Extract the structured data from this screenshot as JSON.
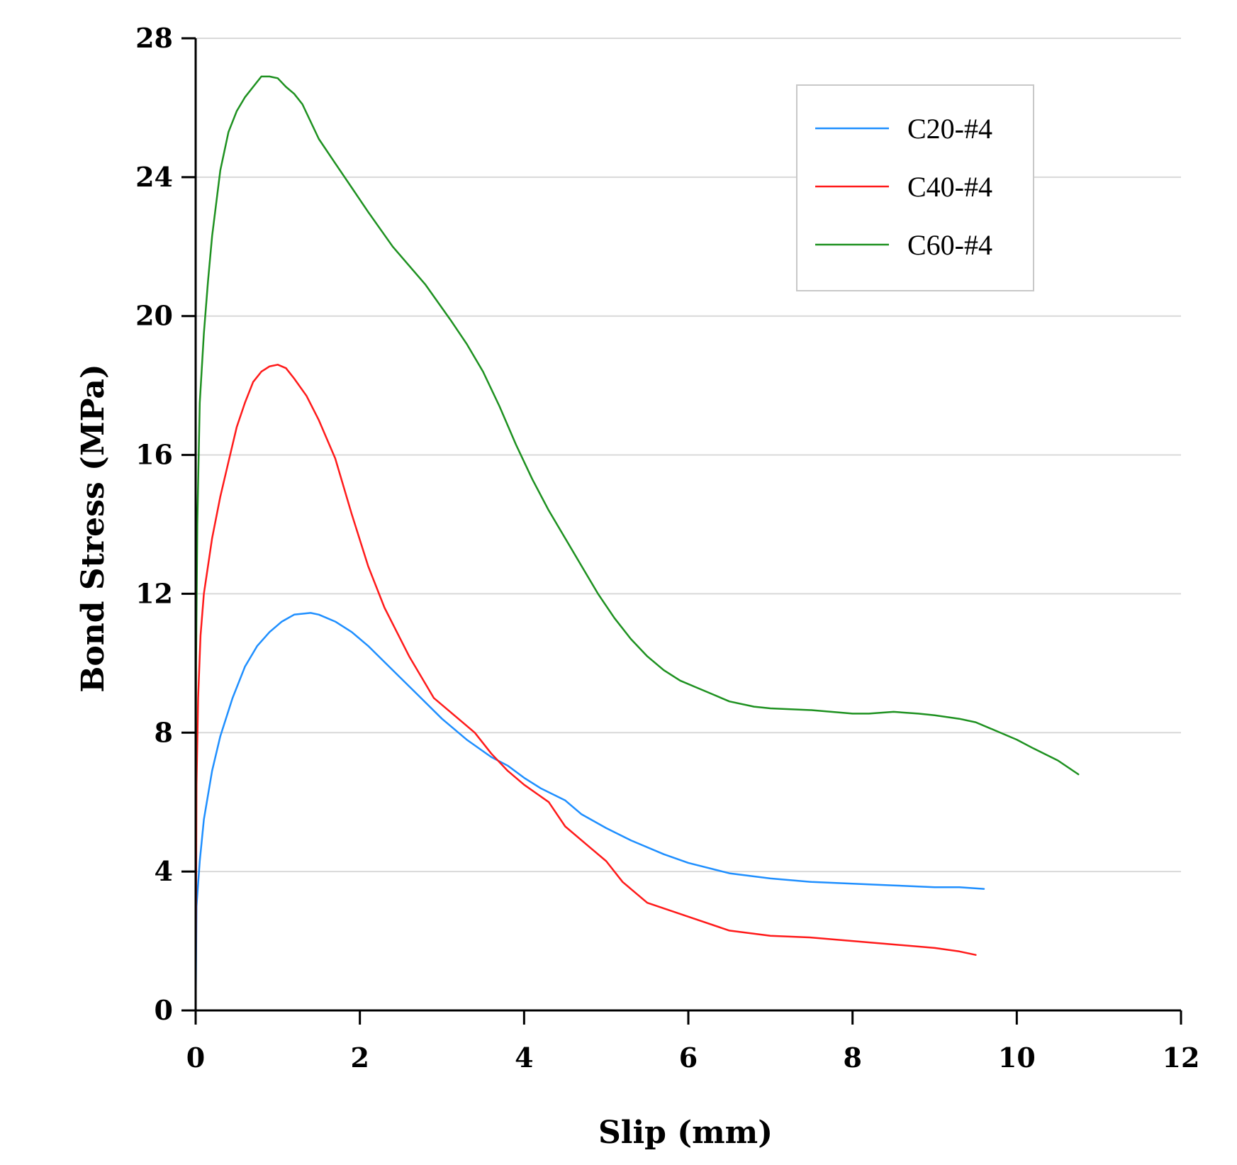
{
  "chart_data": {
    "type": "line",
    "title": "",
    "xlabel": "Slip (mm)",
    "ylabel": "Bond Stress (MPa)",
    "xlim": [
      0,
      12
    ],
    "ylim": [
      0,
      28
    ],
    "xticks": [
      0,
      2,
      4,
      6,
      8,
      10,
      12
    ],
    "yticks": [
      0,
      4,
      8,
      12,
      16,
      20,
      24,
      28
    ],
    "grid": "horizontal",
    "legend_position": "top-right",
    "series": [
      {
        "name": "C20-#4",
        "color": "#1f8fff",
        "x": [
          0,
          0.01,
          0.05,
          0.1,
          0.2,
          0.3,
          0.45,
          0.6,
          0.75,
          0.9,
          1.05,
          1.2,
          1.4,
          1.5,
          1.7,
          1.9,
          2.1,
          2.4,
          2.7,
          3.0,
          3.3,
          3.6,
          3.8,
          4.0,
          4.2,
          4.5,
          4.7,
          5.0,
          5.3,
          5.7,
          6.0,
          6.5,
          7.0,
          7.5,
          8.0,
          8.5,
          9.0,
          9.3,
          9.6
        ],
        "y": [
          0,
          3.0,
          4.3,
          5.5,
          6.9,
          7.9,
          9.0,
          9.9,
          10.5,
          10.9,
          11.2,
          11.4,
          11.45,
          11.4,
          11.2,
          10.9,
          10.5,
          9.8,
          9.1,
          8.4,
          7.8,
          7.3,
          7.05,
          6.7,
          6.4,
          6.05,
          5.65,
          5.25,
          4.9,
          4.5,
          4.25,
          3.95,
          3.8,
          3.7,
          3.65,
          3.6,
          3.55,
          3.55,
          3.5
        ]
      },
      {
        "name": "C40-#4",
        "color": "#ff1a1a",
        "x": [
          0,
          0.01,
          0.03,
          0.06,
          0.1,
          0.15,
          0.2,
          0.3,
          0.4,
          0.5,
          0.6,
          0.7,
          0.8,
          0.9,
          1.0,
          1.1,
          1.2,
          1.35,
          1.5,
          1.7,
          1.9,
          2.1,
          2.3,
          2.6,
          2.9,
          3.1,
          3.4,
          3.6,
          3.8,
          4.0,
          4.3,
          4.5,
          4.8,
          5.0,
          5.2,
          5.5,
          6.0,
          6.5,
          7.0,
          7.5,
          8.0,
          8.5,
          9.0,
          9.3,
          9.5
        ],
        "y": [
          0,
          6.5,
          9.0,
          10.8,
          12.0,
          12.8,
          13.6,
          14.8,
          15.8,
          16.8,
          17.5,
          18.1,
          18.4,
          18.55,
          18.6,
          18.5,
          18.2,
          17.7,
          17.0,
          15.9,
          14.3,
          12.8,
          11.6,
          10.2,
          9.0,
          8.6,
          8.0,
          7.4,
          6.9,
          6.5,
          6.0,
          5.3,
          4.7,
          4.3,
          3.7,
          3.1,
          2.7,
          2.3,
          2.15,
          2.1,
          2.0,
          1.9,
          1.8,
          1.7,
          1.6
        ]
      },
      {
        "name": "C60-#4",
        "color": "#1e9120",
        "x": [
          0,
          0.005,
          0.02,
          0.05,
          0.1,
          0.15,
          0.2,
          0.3,
          0.4,
          0.5,
          0.6,
          0.7,
          0.8,
          0.9,
          1.0,
          1.1,
          1.2,
          1.3,
          1.4,
          1.5,
          1.7,
          1.9,
          2.1,
          2.4,
          2.8,
          3.1,
          3.3,
          3.5,
          3.7,
          3.9,
          4.1,
          4.3,
          4.5,
          4.7,
          4.9,
          5.1,
          5.3,
          5.5,
          5.7,
          5.9,
          6.1,
          6.3,
          6.5,
          6.8,
          7.0,
          7.5,
          8.0,
          8.2,
          8.5,
          8.8,
          9.0,
          9.3,
          9.5,
          9.7,
          10.0,
          10.2,
          10.5,
          10.75
        ],
        "y": [
          0,
          10.0,
          14.0,
          17.5,
          19.5,
          21.0,
          22.3,
          24.2,
          25.3,
          25.9,
          26.3,
          26.6,
          26.9,
          26.9,
          26.85,
          26.6,
          26.4,
          26.1,
          25.6,
          25.1,
          24.4,
          23.7,
          23.0,
          22.0,
          20.9,
          19.9,
          19.2,
          18.4,
          17.4,
          16.3,
          15.3,
          14.4,
          13.6,
          12.8,
          12.0,
          11.3,
          10.7,
          10.2,
          9.8,
          9.5,
          9.3,
          9.1,
          8.9,
          8.75,
          8.7,
          8.65,
          8.55,
          8.55,
          8.6,
          8.55,
          8.5,
          8.4,
          8.3,
          8.1,
          7.8,
          7.55,
          7.2,
          6.8
        ]
      }
    ]
  }
}
